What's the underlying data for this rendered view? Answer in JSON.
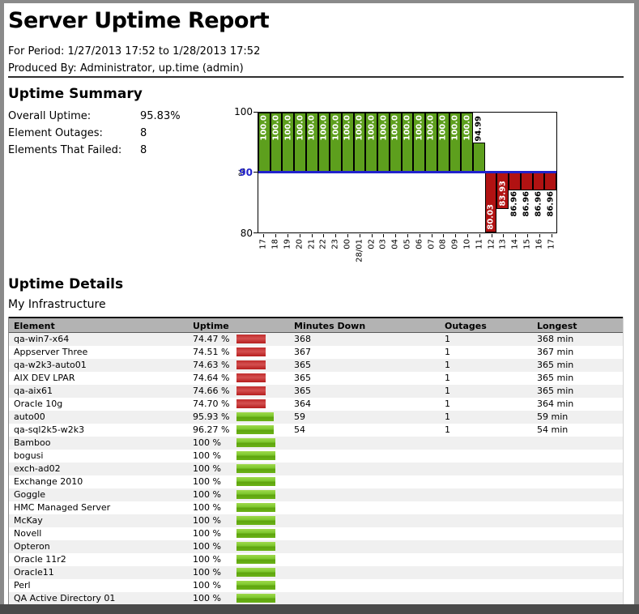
{
  "header": {
    "title": "Server Uptime Report",
    "period_label": "For Period:",
    "period_value": "1/27/2013 17:52 to 1/28/2013 17:52",
    "produced_label": "Produced By:",
    "produced_value": "Administrator, up.time (admin)"
  },
  "summary": {
    "heading": "Uptime Summary",
    "stats": [
      {
        "label": "Overall Uptime:",
        "value": "95.83%"
      },
      {
        "label": "Element Outages:",
        "value": "8"
      },
      {
        "label": "Elements That Failed:",
        "value": "8"
      }
    ]
  },
  "chart_data": {
    "type": "bar",
    "ylabel": "%",
    "ylim": [
      80,
      100
    ],
    "yticks": [
      "100",
      "90",
      "80"
    ],
    "threshold": 90,
    "grid": false,
    "colors": {
      "bar_above": "#5d9f1d",
      "bar_below": "#b11212",
      "threshold_line": "#2222cc"
    },
    "categories": [
      "17",
      "18",
      "19",
      "20",
      "21",
      "22",
      "23",
      "00",
      "28/01",
      "02",
      "03",
      "04",
      "05",
      "06",
      "07",
      "08",
      "09",
      "10",
      "11",
      "12",
      "13",
      "14",
      "15",
      "16",
      "17"
    ],
    "values": [
      100,
      100,
      100,
      100,
      100,
      100,
      100,
      100,
      100,
      100,
      100,
      100,
      100,
      100,
      100,
      100,
      100,
      100,
      94.99,
      80.03,
      83.93,
      86.96,
      86.96,
      86.96,
      86.96
    ],
    "bar_labels": [
      "100.0",
      "100.0",
      "100.0",
      "100.0",
      "100.0",
      "100.0",
      "100.0",
      "100.0",
      "100.0",
      "100.0",
      "100.0",
      "100.0",
      "100.0",
      "100.0",
      "100.0",
      "100.0",
      "100.0",
      "100.0",
      "94.99",
      "80.03",
      "83.93",
      "86.96",
      "86.96",
      "86.96",
      "86.96"
    ]
  },
  "details": {
    "heading": "Uptime Details",
    "subheading": "My Infrastructure",
    "table": {
      "columns": [
        "Element",
        "Uptime",
        "Minutes Down",
        "Outages",
        "Longest"
      ],
      "rows": [
        {
          "element": "qa-win7-x64",
          "uptime": "74.47 %",
          "pct": 74.47,
          "minutes": "368",
          "outages": "1",
          "longest": "368 min"
        },
        {
          "element": "Appserver Three",
          "uptime": "74.51 %",
          "pct": 74.51,
          "minutes": "367",
          "outages": "1",
          "longest": "367 min"
        },
        {
          "element": "qa-w2k3-auto01",
          "uptime": "74.63 %",
          "pct": 74.63,
          "minutes": "365",
          "outages": "1",
          "longest": "365 min"
        },
        {
          "element": "AIX DEV LPAR",
          "uptime": "74.64 %",
          "pct": 74.64,
          "minutes": "365",
          "outages": "1",
          "longest": "365 min"
        },
        {
          "element": "qa-aix61",
          "uptime": "74.66 %",
          "pct": 74.66,
          "minutes": "365",
          "outages": "1",
          "longest": "365 min"
        },
        {
          "element": "Oracle 10g",
          "uptime": "74.70 %",
          "pct": 74.7,
          "minutes": "364",
          "outages": "1",
          "longest": "364 min"
        },
        {
          "element": "auto00",
          "uptime": "95.93 %",
          "pct": 95.93,
          "minutes": "59",
          "outages": "1",
          "longest": "59 min"
        },
        {
          "element": "qa-sql2k5-w2k3",
          "uptime": "96.27 %",
          "pct": 96.27,
          "minutes": "54",
          "outages": "1",
          "longest": "54 min"
        },
        {
          "element": "Bamboo",
          "uptime": "100 %",
          "pct": 100,
          "minutes": "",
          "outages": "",
          "longest": ""
        },
        {
          "element": "bogusi",
          "uptime": "100 %",
          "pct": 100,
          "minutes": "",
          "outages": "",
          "longest": ""
        },
        {
          "element": "exch-ad02",
          "uptime": "100 %",
          "pct": 100,
          "minutes": "",
          "outages": "",
          "longest": ""
        },
        {
          "element": "Exchange 2010",
          "uptime": "100 %",
          "pct": 100,
          "minutes": "",
          "outages": "",
          "longest": ""
        },
        {
          "element": "Goggle",
          "uptime": "100 %",
          "pct": 100,
          "minutes": "",
          "outages": "",
          "longest": ""
        },
        {
          "element": "HMC Managed Server",
          "uptime": "100 %",
          "pct": 100,
          "minutes": "",
          "outages": "",
          "longest": ""
        },
        {
          "element": "McKay",
          "uptime": "100 %",
          "pct": 100,
          "minutes": "",
          "outages": "",
          "longest": ""
        },
        {
          "element": "Novell",
          "uptime": "100 %",
          "pct": 100,
          "minutes": "",
          "outages": "",
          "longest": ""
        },
        {
          "element": "Opteron",
          "uptime": "100 %",
          "pct": 100,
          "minutes": "",
          "outages": "",
          "longest": ""
        },
        {
          "element": "Oracle 11r2",
          "uptime": "100 %",
          "pct": 100,
          "minutes": "",
          "outages": "",
          "longest": ""
        },
        {
          "element": "Oracle11",
          "uptime": "100 %",
          "pct": 100,
          "minutes": "",
          "outages": "",
          "longest": ""
        },
        {
          "element": "Perl",
          "uptime": "100 %",
          "pct": 100,
          "minutes": "",
          "outages": "",
          "longest": ""
        },
        {
          "element": "QA Active Directory 01",
          "uptime": "100 %",
          "pct": 100,
          "minutes": "",
          "outages": "",
          "longest": ""
        }
      ],
      "status_colors": {
        "up_bar": "#7cc62c",
        "down_bar": "#c02c2c",
        "header_bg": "#b3b3b3",
        "alt_row_bg": "#f0f0f0"
      }
    }
  }
}
